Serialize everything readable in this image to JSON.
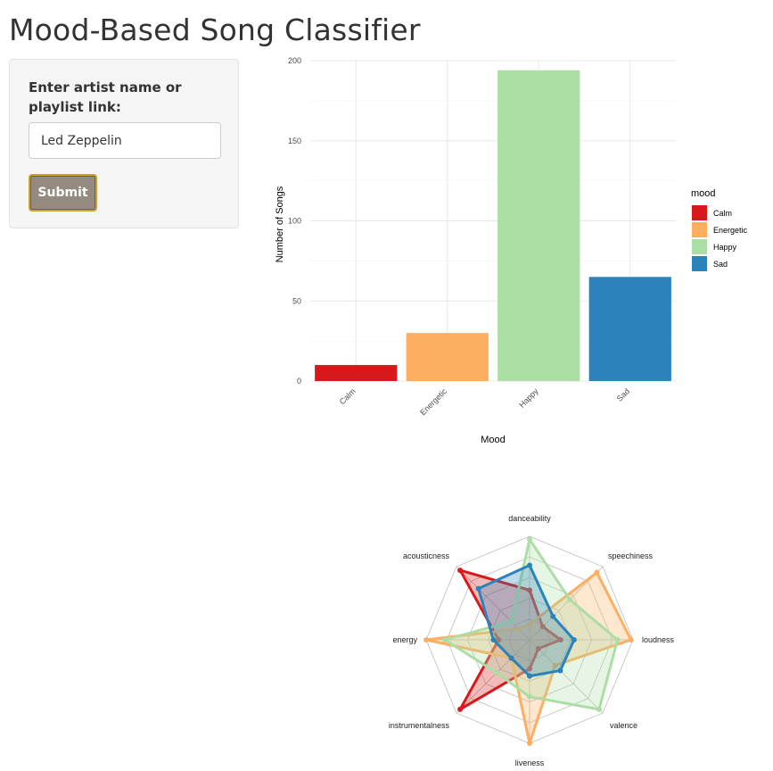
{
  "page": {
    "title": "Mood-Based Song Classifier"
  },
  "sidebar": {
    "input_label": "Enter artist name or playlist link:",
    "input_value": "Led Zeppelin",
    "submit_label": "Submit"
  },
  "colors": {
    "Calm": "#d7191c",
    "Energetic": "#fdae61",
    "Happy": "#abdda4",
    "Sad": "#2b83ba"
  },
  "chart_data": [
    {
      "type": "bar",
      "categories": [
        "Calm",
        "Energetic",
        "Happy",
        "Sad"
      ],
      "values": [
        10,
        30,
        194,
        65
      ],
      "title": "",
      "xlabel": "Mood",
      "ylabel": "Number of Songs",
      "ylim": [
        0,
        200
      ],
      "yticks": [
        0,
        50,
        100,
        150,
        200
      ],
      "grid": true,
      "legend": {
        "title": "mood",
        "position": "right",
        "entries": [
          "Calm",
          "Energetic",
          "Happy",
          "Sad"
        ]
      }
    },
    {
      "type": "radar",
      "axes": [
        "danceability",
        "speechiness",
        "loudness",
        "valence",
        "liveness",
        "instrumentalness",
        "energy",
        "acousticness"
      ],
      "rmax": 1,
      "grid_levels": 5,
      "series": [
        {
          "name": "Calm",
          "values": [
            0.48,
            0.18,
            0.3,
            0.12,
            0.28,
            0.95,
            0.3,
            0.95
          ]
        },
        {
          "name": "Energetic",
          "values": [
            0.15,
            0.92,
            0.98,
            0.35,
            1.0,
            0.25,
            1.0,
            0.15
          ]
        },
        {
          "name": "Happy",
          "values": [
            0.97,
            0.55,
            0.85,
            0.95,
            0.55,
            0.45,
            0.82,
            0.25
          ]
        },
        {
          "name": "Sad",
          "values": [
            0.72,
            0.32,
            0.43,
            0.42,
            0.35,
            0.25,
            0.35,
            0.7
          ]
        }
      ]
    }
  ]
}
